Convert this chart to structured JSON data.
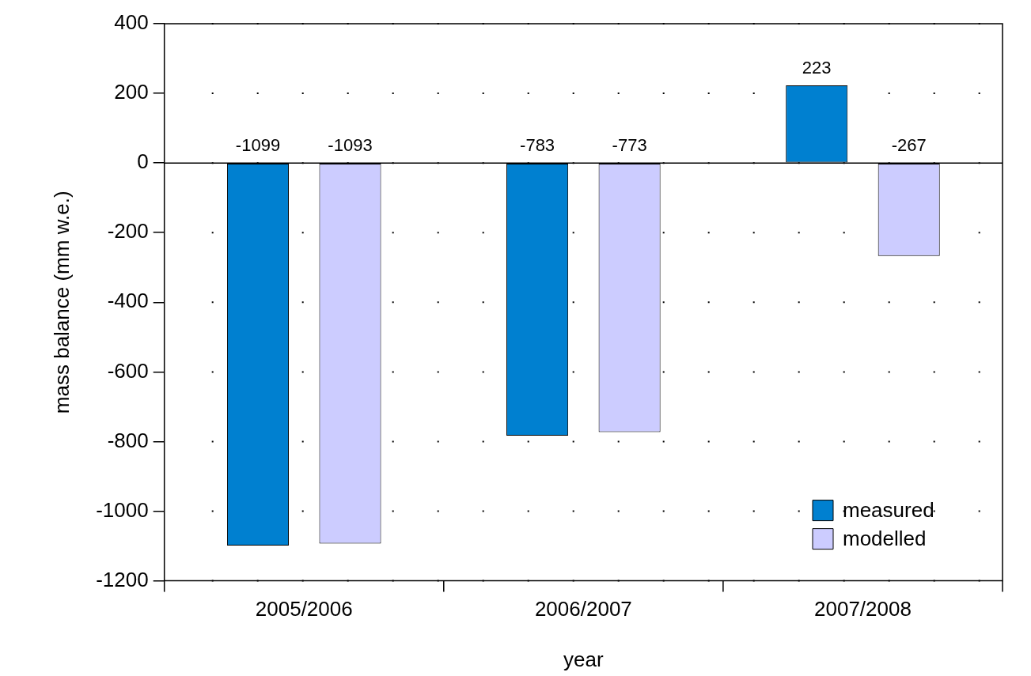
{
  "chart_data": {
    "type": "bar",
    "xlabel": "year",
    "ylabel": "mass balance (mm w.e.)",
    "categories": [
      "2005/2006",
      "2006/2007",
      "2007/2008"
    ],
    "series": [
      {
        "name": "measured",
        "color": "#0080d0",
        "values": [
          -1099,
          -783,
          223
        ]
      },
      {
        "name": "modelled",
        "color": "#ccccff",
        "values": [
          -1093,
          -773,
          -267
        ]
      }
    ],
    "ylim": [
      -1200,
      400
    ],
    "yticks": [
      -1200,
      -1000,
      -800,
      -600,
      -400,
      -200,
      0,
      200,
      400
    ],
    "ref_lines": [
      {
        "axis": "y",
        "value": 0,
        "color": "#000000",
        "line_style": "solid"
      }
    ],
    "grid": "y",
    "legend": "bottom right",
    "data_labels": true
  }
}
